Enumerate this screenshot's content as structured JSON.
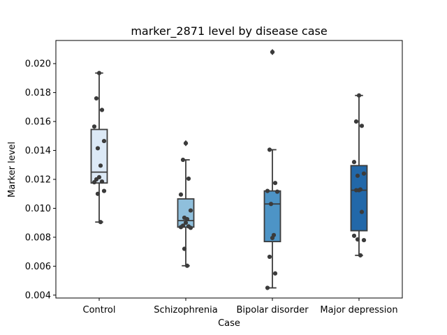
{
  "chart_data": {
    "type": "box",
    "title": "marker_2871 level by disease case",
    "xlabel": "Case",
    "ylabel": "Marker level",
    "categories": [
      "Control",
      "Schizophrenia",
      "Bipolar disorder",
      "Major depression"
    ],
    "ylim": [
      0.0038,
      0.0216
    ],
    "yticks": [
      0.004,
      0.006,
      0.008,
      0.01,
      0.012,
      0.014,
      0.016,
      0.018,
      0.02
    ],
    "ytick_labels": [
      "0.004",
      "0.006",
      "0.008",
      "0.010",
      "0.012",
      "0.014",
      "0.016",
      "0.018",
      "0.020"
    ],
    "colors": {
      "boxes": [
        "#dce9f6",
        "#8fbfdc",
        "#4d94c6",
        "#2268a9"
      ],
      "edge": "#3b3b3b",
      "points": "#3b3b3b"
    },
    "boxes": [
      {
        "category": "Control",
        "q1": 0.01175,
        "median": 0.0125,
        "q3": 0.01545,
        "whisker_low": 0.00905,
        "whisker_high": 0.01935,
        "fliers": []
      },
      {
        "category": "Schizophrenia",
        "q1": 0.0087,
        "median": 0.00915,
        "q3": 0.01065,
        "whisker_low": 0.00603,
        "whisker_high": 0.01335,
        "fliers": [
          0.0145
        ]
      },
      {
        "category": "Bipolar disorder",
        "q1": 0.0077,
        "median": 0.0103,
        "q3": 0.0112,
        "whisker_low": 0.0045,
        "whisker_high": 0.01405,
        "fliers": [
          0.0208
        ]
      },
      {
        "category": "Major depression",
        "q1": 0.00845,
        "median": 0.01125,
        "q3": 0.01295,
        "whisker_low": 0.00675,
        "whisker_high": 0.0178,
        "fliers": []
      }
    ],
    "points": [
      [
        0.01935,
        0.0176,
        0.0168,
        0.01565,
        0.01465,
        0.01415,
        0.01295,
        0.01215,
        0.012,
        0.01185,
        0.0118,
        0.0112,
        0.011,
        0.00905
      ],
      [
        0.0145,
        0.01335,
        0.01205,
        0.01095,
        0.00985,
        0.00935,
        0.00925,
        0.009,
        0.0088,
        0.00875,
        0.0087,
        0.00865,
        0.0072,
        0.00603
      ],
      [
        0.0208,
        0.01405,
        0.01175,
        0.0112,
        0.01115,
        0.0103,
        0.00815,
        0.00795,
        0.00665,
        0.0055,
        0.0045
      ],
      [
        0.0178,
        0.016,
        0.0157,
        0.0132,
        0.0124,
        0.01225,
        0.0113,
        0.01125,
        0.01125,
        0.00975,
        0.0081,
        0.0078,
        0.00785,
        0.00675
      ]
    ]
  }
}
